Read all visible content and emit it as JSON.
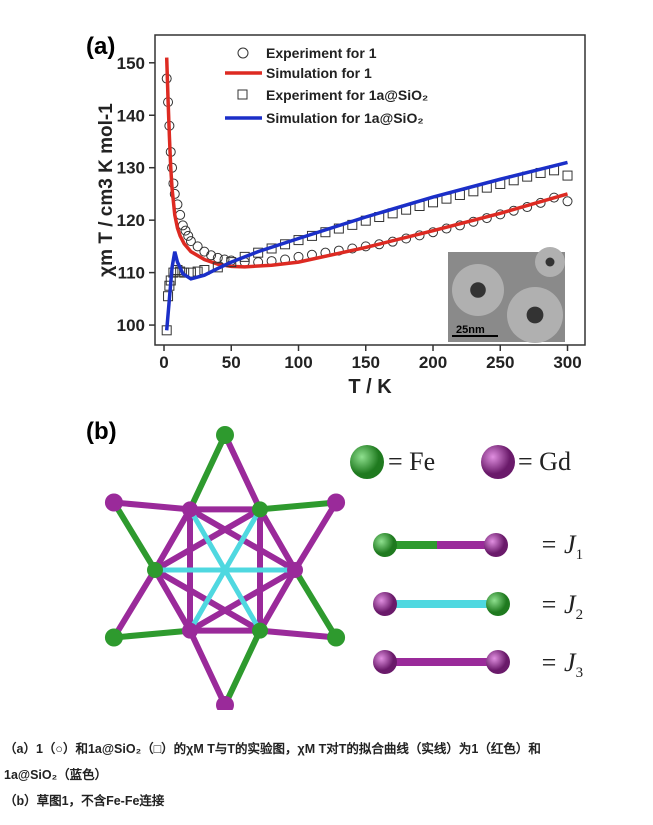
{
  "panel_a_label": "(a)",
  "panel_b_label": "(b)",
  "chart_data": {
    "type": "scatter",
    "xlabel": "T / K",
    "ylabel": "χm T / cm3 K mol-1",
    "xlim": [
      -6.7,
      313
    ],
    "ylim": [
      96.2,
      155.3
    ],
    "xticks": [
      0,
      50,
      100,
      150,
      200,
      250,
      300
    ],
    "yticks": [
      100,
      110,
      120,
      130,
      140,
      150
    ],
    "legend_position": "top-center",
    "inset_scale_label": "25nm",
    "series": [
      {
        "name": "Experiment for 1",
        "kind": "circle",
        "color": "#333333",
        "x": [
          2,
          3,
          4,
          5,
          6,
          7,
          8,
          10,
          12,
          14,
          16,
          18,
          20,
          25,
          30,
          35,
          40,
          45,
          50,
          60,
          70,
          80,
          90,
          100,
          110,
          120,
          130,
          140,
          150,
          160,
          170,
          180,
          190,
          200,
          210,
          220,
          230,
          240,
          250,
          260,
          270,
          280,
          290,
          300
        ],
        "y": [
          147,
          142.5,
          138,
          133,
          130,
          127,
          125,
          123,
          121,
          119,
          118,
          117,
          116,
          115,
          114,
          113.3,
          112.8,
          112.5,
          112.3,
          112,
          112,
          112.2,
          112.5,
          113,
          113.4,
          113.8,
          114.2,
          114.6,
          115,
          115.4,
          115.9,
          116.5,
          117.1,
          117.7,
          118.4,
          119,
          119.7,
          120.4,
          121.1,
          121.8,
          122.5,
          123.3,
          124.3,
          123.6
        ]
      },
      {
        "name": "Simulation for 1",
        "kind": "line",
        "color": "#dd2a22",
        "x": [
          2,
          3,
          4,
          5,
          6,
          8,
          10,
          12,
          15,
          20,
          30,
          40,
          50,
          60,
          80,
          100,
          150,
          200,
          250,
          300
        ],
        "y": [
          151,
          143,
          136,
          130,
          126,
          121,
          118.5,
          117,
          115.5,
          114,
          112.5,
          111.6,
          111.2,
          111.1,
          111.4,
          112,
          114.8,
          118,
          121.3,
          125
        ]
      },
      {
        "name": "Experiment for 1a@SiO2",
        "kind": "square",
        "color": "#333333",
        "x": [
          2,
          3,
          4,
          5,
          7,
          10,
          12,
          15,
          20,
          25,
          30,
          40,
          50,
          60,
          70,
          80,
          90,
          100,
          110,
          120,
          130,
          140,
          150,
          160,
          170,
          180,
          190,
          200,
          210,
          220,
          230,
          240,
          250,
          260,
          270,
          280,
          290,
          300
        ],
        "y": [
          99,
          105.5,
          107.5,
          108.5,
          110,
          110.5,
          110.2,
          110,
          110,
          110.2,
          110.5,
          111,
          112,
          113,
          113.8,
          114.6,
          115.4,
          116.2,
          117,
          117.7,
          118.4,
          119.1,
          119.9,
          120.6,
          121.3,
          122,
          122.7,
          123.4,
          124.1,
          124.8,
          125.5,
          126.2,
          126.9,
          127.6,
          128.3,
          129,
          129.5,
          128.5
        ]
      },
      {
        "name": "Simulation for 1a@SiO2",
        "kind": "line",
        "color": "#1b2fc8",
        "x": [
          2,
          4,
          6,
          8,
          10,
          14,
          20,
          30,
          40,
          50,
          70,
          100,
          150,
          200,
          250,
          300
        ],
        "y": [
          99,
          105,
          111,
          114,
          112,
          109.8,
          108.8,
          109.5,
          110.8,
          112,
          114,
          116.5,
          120.6,
          124.4,
          127.8,
          131
        ]
      }
    ]
  },
  "panel_b": {
    "legend": {
      "fe": "= Fe",
      "gd": "= Gd",
      "j1": "= J",
      "j1_sub": "1",
      "j2": "= J",
      "j2_sub": "2",
      "j3": "= J",
      "j3_sub": "3"
    },
    "colors": {
      "fe": "#2e9a2e",
      "gd": "#9a2a9a",
      "j2": "#4fd8e0"
    }
  },
  "caption": {
    "line1": "（a）1（○）和1a@SiO₂（□）的χM T与T的实验图，χM T对T的拟合曲线（实线）为1（红色）和",
    "line2": "1a@SiO₂（蓝色）",
    "line3": "（b）草图1，不含Fe-Fe连接"
  }
}
